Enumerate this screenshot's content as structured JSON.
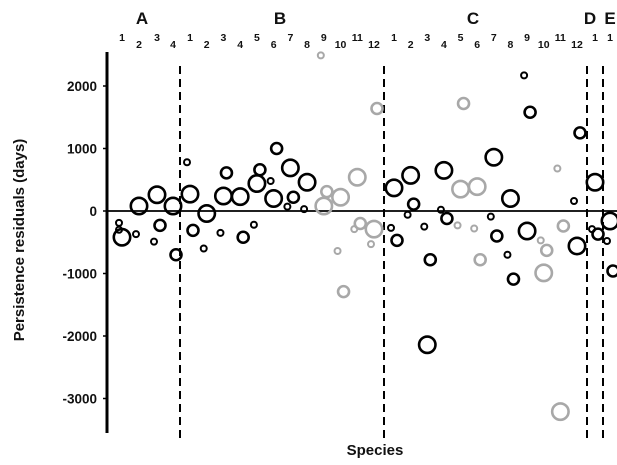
{
  "chart_data": {
    "type": "scatter",
    "title": "",
    "xlabel": "Species",
    "ylabel": "Persistence residuals (days)",
    "ylim": [
      -3600,
      2600
    ],
    "yticks": [
      2000,
      1000,
      0,
      -1000,
      -2000,
      -3000
    ],
    "ytick_labels": [
      "2000",
      "1000",
      "0",
      "-1000",
      "-2000",
      "-3000"
    ],
    "grid": false,
    "zero_line": true,
    "group_dividers": "dashed",
    "marker": "open-circle",
    "colors": {
      "dark": "#000000",
      "light": "#a8a8a8"
    },
    "groups": [
      {
        "label": "A",
        "species": [
          "1",
          "2",
          "3",
          "4"
        ]
      },
      {
        "label": "B",
        "species": [
          "1",
          "2",
          "3",
          "4",
          "5",
          "6",
          "7",
          "8",
          "9",
          "10",
          "11",
          "12"
        ]
      },
      {
        "label": "C",
        "species": [
          "1",
          "2",
          "3",
          "4",
          "5",
          "6",
          "7",
          "8",
          "9",
          "10",
          "11",
          "12"
        ]
      },
      {
        "label": "D",
        "species": [
          "1"
        ]
      },
      {
        "label": "E",
        "species": [
          "1"
        ]
      }
    ],
    "points": [
      {
        "group": "A",
        "species": 1,
        "y": -420,
        "size": "large",
        "tone": "dark"
      },
      {
        "group": "A",
        "species": 1,
        "y": -300,
        "size": "small",
        "tone": "dark"
      },
      {
        "group": "A",
        "species": 1,
        "y": -190,
        "size": "small",
        "tone": "dark"
      },
      {
        "group": "A",
        "species": 2,
        "y": 80,
        "size": "large",
        "tone": "dark"
      },
      {
        "group": "A",
        "species": 2,
        "y": -370,
        "size": "small",
        "tone": "dark"
      },
      {
        "group": "A",
        "species": 3,
        "y": 260,
        "size": "large",
        "tone": "dark"
      },
      {
        "group": "A",
        "species": 3,
        "y": -230,
        "size": "medium",
        "tone": "dark"
      },
      {
        "group": "A",
        "species": 3,
        "y": -490,
        "size": "small",
        "tone": "dark"
      },
      {
        "group": "A",
        "species": 4,
        "y": 80,
        "size": "large",
        "tone": "dark"
      },
      {
        "group": "A",
        "species": 4,
        "y": -700,
        "size": "medium",
        "tone": "dark"
      },
      {
        "group": "B",
        "species": 1,
        "y": 780,
        "size": "small",
        "tone": "dark"
      },
      {
        "group": "B",
        "species": 1,
        "y": 270,
        "size": "large",
        "tone": "dark"
      },
      {
        "group": "B",
        "species": 1,
        "y": -310,
        "size": "medium",
        "tone": "dark"
      },
      {
        "group": "B",
        "species": 2,
        "y": -40,
        "size": "large",
        "tone": "dark"
      },
      {
        "group": "B",
        "species": 2,
        "y": -600,
        "size": "small",
        "tone": "dark"
      },
      {
        "group": "B",
        "species": 3,
        "y": 610,
        "size": "medium",
        "tone": "dark"
      },
      {
        "group": "B",
        "species": 3,
        "y": 240,
        "size": "large",
        "tone": "dark"
      },
      {
        "group": "B",
        "species": 3,
        "y": -350,
        "size": "small",
        "tone": "dark"
      },
      {
        "group": "B",
        "species": 4,
        "y": 230,
        "size": "large",
        "tone": "dark"
      },
      {
        "group": "B",
        "species": 4,
        "y": -420,
        "size": "medium",
        "tone": "dark"
      },
      {
        "group": "B",
        "species": 5,
        "y": 660,
        "size": "medium",
        "tone": "dark"
      },
      {
        "group": "B",
        "species": 5,
        "y": 440,
        "size": "large",
        "tone": "dark"
      },
      {
        "group": "B",
        "species": 5,
        "y": -220,
        "size": "small",
        "tone": "dark"
      },
      {
        "group": "B",
        "species": 6,
        "y": 1000,
        "size": "medium",
        "tone": "dark"
      },
      {
        "group": "B",
        "species": 6,
        "y": 480,
        "size": "small",
        "tone": "dark"
      },
      {
        "group": "B",
        "species": 6,
        "y": 200,
        "size": "large",
        "tone": "dark"
      },
      {
        "group": "B",
        "species": 7,
        "y": 690,
        "size": "large",
        "tone": "dark"
      },
      {
        "group": "B",
        "species": 7,
        "y": 220,
        "size": "medium",
        "tone": "dark"
      },
      {
        "group": "B",
        "species": 7,
        "y": 70,
        "size": "small",
        "tone": "dark"
      },
      {
        "group": "B",
        "species": 8,
        "y": 460,
        "size": "large",
        "tone": "dark"
      },
      {
        "group": "B",
        "species": 8,
        "y": 30,
        "size": "small",
        "tone": "dark"
      },
      {
        "group": "B",
        "species": 9,
        "y": 2490,
        "size": "small",
        "tone": "light"
      },
      {
        "group": "B",
        "species": 9,
        "y": 310,
        "size": "medium",
        "tone": "light"
      },
      {
        "group": "B",
        "species": 9,
        "y": 80,
        "size": "large",
        "tone": "light"
      },
      {
        "group": "B",
        "species": 10,
        "y": 220,
        "size": "large",
        "tone": "light"
      },
      {
        "group": "B",
        "species": 10,
        "y": -640,
        "size": "small",
        "tone": "light"
      },
      {
        "group": "B",
        "species": 10,
        "y": -1290,
        "size": "medium",
        "tone": "light"
      },
      {
        "group": "B",
        "species": 11,
        "y": 540,
        "size": "large",
        "tone": "light"
      },
      {
        "group": "B",
        "species": 11,
        "y": -200,
        "size": "medium",
        "tone": "light"
      },
      {
        "group": "B",
        "species": 11,
        "y": -290,
        "size": "small",
        "tone": "light"
      },
      {
        "group": "B",
        "species": 12,
        "y": 1640,
        "size": "medium",
        "tone": "light"
      },
      {
        "group": "B",
        "species": 12,
        "y": -290,
        "size": "large",
        "tone": "light"
      },
      {
        "group": "B",
        "species": 12,
        "y": -530,
        "size": "small",
        "tone": "light"
      },
      {
        "group": "C",
        "species": 1,
        "y": 370,
        "size": "large",
        "tone": "dark"
      },
      {
        "group": "C",
        "species": 1,
        "y": -270,
        "size": "small",
        "tone": "dark"
      },
      {
        "group": "C",
        "species": 1,
        "y": -470,
        "size": "medium",
        "tone": "dark"
      },
      {
        "group": "C",
        "species": 2,
        "y": 570,
        "size": "large",
        "tone": "dark"
      },
      {
        "group": "C",
        "species": 2,
        "y": 110,
        "size": "medium",
        "tone": "dark"
      },
      {
        "group": "C",
        "species": 2,
        "y": -60,
        "size": "small",
        "tone": "dark"
      },
      {
        "group": "C",
        "species": 3,
        "y": -250,
        "size": "small",
        "tone": "dark"
      },
      {
        "group": "C",
        "species": 3,
        "y": -780,
        "size": "medium",
        "tone": "dark"
      },
      {
        "group": "C",
        "species": 3,
        "y": -2140,
        "size": "large",
        "tone": "dark"
      },
      {
        "group": "C",
        "species": 4,
        "y": 650,
        "size": "large",
        "tone": "dark"
      },
      {
        "group": "C",
        "species": 4,
        "y": 20,
        "size": "small",
        "tone": "dark"
      },
      {
        "group": "C",
        "species": 4,
        "y": -120,
        "size": "medium",
        "tone": "dark"
      },
      {
        "group": "C",
        "species": 5,
        "y": 1720,
        "size": "medium",
        "tone": "light"
      },
      {
        "group": "C",
        "species": 5,
        "y": 350,
        "size": "large",
        "tone": "light"
      },
      {
        "group": "C",
        "species": 5,
        "y": -230,
        "size": "small",
        "tone": "light"
      },
      {
        "group": "C",
        "species": 6,
        "y": 390,
        "size": "large",
        "tone": "light"
      },
      {
        "group": "C",
        "species": 6,
        "y": -280,
        "size": "small",
        "tone": "light"
      },
      {
        "group": "C",
        "species": 6,
        "y": -780,
        "size": "medium",
        "tone": "light"
      },
      {
        "group": "C",
        "species": 7,
        "y": 860,
        "size": "large",
        "tone": "dark"
      },
      {
        "group": "C",
        "species": 7,
        "y": -90,
        "size": "small",
        "tone": "dark"
      },
      {
        "group": "C",
        "species": 7,
        "y": -400,
        "size": "medium",
        "tone": "dark"
      },
      {
        "group": "C",
        "species": 8,
        "y": 200,
        "size": "large",
        "tone": "dark"
      },
      {
        "group": "C",
        "species": 8,
        "y": -700,
        "size": "small",
        "tone": "dark"
      },
      {
        "group": "C",
        "species": 8,
        "y": -1090,
        "size": "medium",
        "tone": "dark"
      },
      {
        "group": "C",
        "species": 9,
        "y": 2170,
        "size": "small",
        "tone": "dark"
      },
      {
        "group": "C",
        "species": 9,
        "y": 1580,
        "size": "medium",
        "tone": "dark"
      },
      {
        "group": "C",
        "species": 9,
        "y": -320,
        "size": "large",
        "tone": "dark"
      },
      {
        "group": "C",
        "species": 10,
        "y": -470,
        "size": "small",
        "tone": "light"
      },
      {
        "group": "C",
        "species": 10,
        "y": -630,
        "size": "medium",
        "tone": "light"
      },
      {
        "group": "C",
        "species": 10,
        "y": -990,
        "size": "large",
        "tone": "light"
      },
      {
        "group": "C",
        "species": 11,
        "y": 680,
        "size": "small",
        "tone": "light"
      },
      {
        "group": "C",
        "species": 11,
        "y": -240,
        "size": "medium",
        "tone": "light"
      },
      {
        "group": "C",
        "species": 11,
        "y": -3210,
        "size": "large",
        "tone": "light"
      },
      {
        "group": "C",
        "species": 12,
        "y": 1250,
        "size": "medium",
        "tone": "dark"
      },
      {
        "group": "C",
        "species": 12,
        "y": 160,
        "size": "small",
        "tone": "dark"
      },
      {
        "group": "C",
        "species": 12,
        "y": -560,
        "size": "large",
        "tone": "dark"
      },
      {
        "group": "D",
        "species": 1,
        "y": 460,
        "size": "large",
        "tone": "dark"
      },
      {
        "group": "D",
        "species": 1,
        "y": -290,
        "size": "small",
        "tone": "dark"
      },
      {
        "group": "D",
        "species": 1,
        "y": -370,
        "size": "medium",
        "tone": "dark"
      },
      {
        "group": "E",
        "species": 1,
        "y": -160,
        "size": "large",
        "tone": "dark"
      },
      {
        "group": "E",
        "species": 1,
        "y": -480,
        "size": "small",
        "tone": "dark"
      },
      {
        "group": "E",
        "species": 1,
        "y": -960,
        "size": "medium",
        "tone": "dark"
      }
    ]
  }
}
